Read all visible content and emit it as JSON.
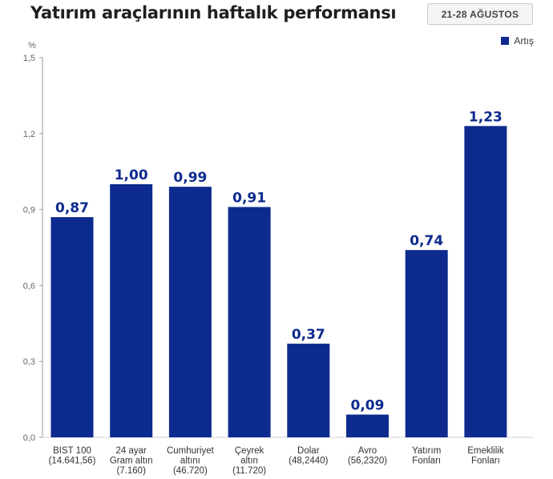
{
  "title": "Yatırım araçlarının haftalık performansı",
  "date_badge": "21-28 AĞUSTOS",
  "colors": {
    "bar": "#0d2b8e",
    "label": "#0d2b8e",
    "axis": "#9a9a9a",
    "text": "#333333"
  },
  "chart_data": {
    "type": "bar",
    "title": "Yatırım araçlarının haftalık performansı",
    "ylabel": "%",
    "ylim": [
      0,
      1.5
    ],
    "yticks": [
      "0,0",
      "0,3",
      "0,6",
      "0,9",
      "1,2",
      "1,5"
    ],
    "ytick_values": [
      0,
      0.3,
      0.6,
      0.9,
      1.2,
      1.5
    ],
    "grid": false,
    "legend_position": "top-right",
    "categories": [
      [
        "BIST 100",
        "(14.641,56)"
      ],
      [
        "24 ayar",
        "Gram altın",
        "(7.160)"
      ],
      [
        "Cumhuriyet",
        "altını",
        "(46.720)"
      ],
      [
        "Çeyrek",
        "altın",
        "(11.720)"
      ],
      [
        "Dolar",
        "(48,2440)"
      ],
      [
        "Avro",
        "(56,2320)"
      ],
      [
        "Yatırım",
        "Fonları"
      ],
      [
        "Emeklilik",
        "Fonları"
      ]
    ],
    "series": [
      {
        "name": "Artış",
        "values": [
          0.87,
          1.0,
          0.99,
          0.91,
          0.37,
          0.09,
          0.74,
          1.23
        ],
        "labels": [
          "0,87",
          "1,00",
          "0,99",
          "0,91",
          "0,37",
          "0,09",
          "0,74",
          "1,23"
        ]
      }
    ]
  }
}
